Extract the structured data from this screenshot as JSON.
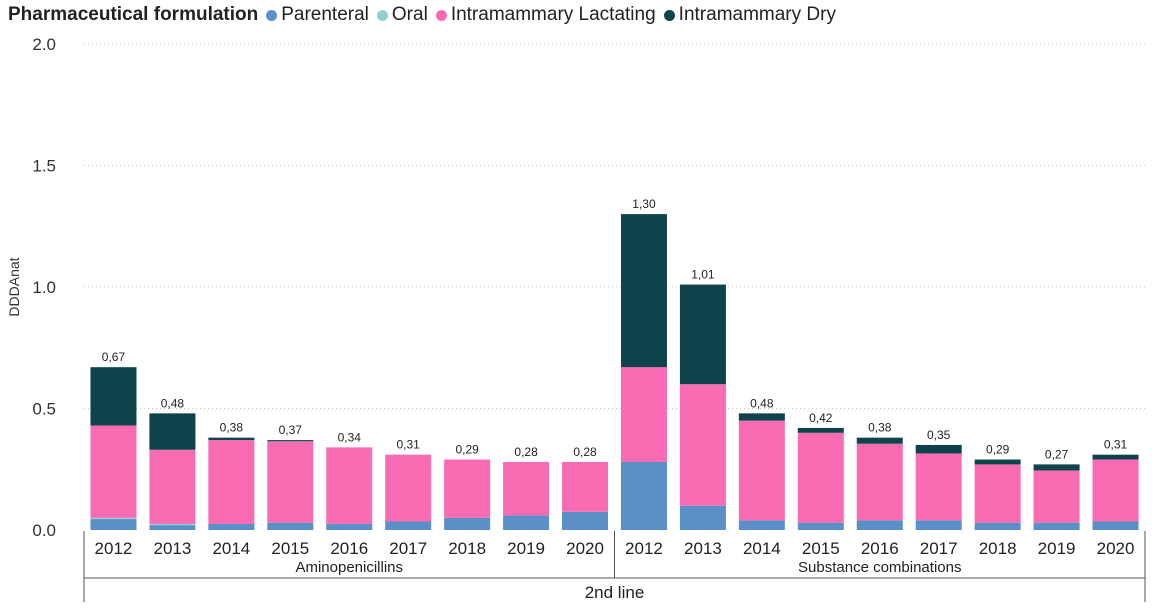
{
  "chart_data": {
    "type": "bar",
    "stacked": true,
    "legend_title": "Pharmaceutical formulation",
    "ylabel": "DDDAnat",
    "ylim": [
      0,
      2.0
    ],
    "yticks": [
      "0.0",
      "0.5",
      "1.0",
      "1.5",
      "2.0"
    ],
    "ytick_values": [
      0,
      0.5,
      1.0,
      1.5,
      2.0
    ],
    "grid": "horizontal dotted",
    "categories": [
      "2012",
      "2013",
      "2014",
      "2015",
      "2016",
      "2017",
      "2018",
      "2019",
      "2020",
      "2012",
      "2013",
      "2014",
      "2015",
      "2016",
      "2017",
      "2018",
      "2019",
      "2020"
    ],
    "groups": [
      {
        "label": "Aminopenicillins",
        "count": 9
      },
      {
        "label": "Substance combinations",
        "count": 9
      }
    ],
    "supergroup": "2nd line",
    "series": [
      {
        "name": "Parenteral",
        "color": "#5b8fc7",
        "values": [
          0.045,
          0.02,
          0.025,
          0.03,
          0.025,
          0.035,
          0.05,
          0.06,
          0.075,
          0.28,
          0.1,
          0.04,
          0.03,
          0.04,
          0.04,
          0.03,
          0.03,
          0.035
        ]
      },
      {
        "name": "Oral",
        "color": "#92cfd0",
        "values": [
          0.005,
          0.005,
          0.0,
          0.0,
          0.0,
          0.0,
          0.0,
          0.0,
          0.0,
          0.0,
          0.0,
          0.0,
          0.0,
          0.0,
          0.0,
          0.0,
          0.0,
          0.0
        ]
      },
      {
        "name": "Intramammary Lactating",
        "color": "#f96cb4",
        "values": [
          0.38,
          0.305,
          0.345,
          0.335,
          0.315,
          0.275,
          0.24,
          0.22,
          0.205,
          0.39,
          0.5,
          0.41,
          0.37,
          0.315,
          0.275,
          0.24,
          0.215,
          0.255
        ]
      },
      {
        "name": "Intramammary Dry",
        "color": "#0f434b",
        "values": [
          0.24,
          0.15,
          0.01,
          0.005,
          0.0,
          0.0,
          0.0,
          0.0,
          0.0,
          0.63,
          0.41,
          0.03,
          0.02,
          0.025,
          0.035,
          0.02,
          0.025,
          0.02
        ]
      }
    ],
    "totals": [
      "0,67",
      "0,48",
      "0,38",
      "0,37",
      "0,34",
      "0,31",
      "0,29",
      "0,28",
      "0,28",
      "1,30",
      "1,01",
      "0,48",
      "0,42",
      "0,38",
      "0,35",
      "0,29",
      "0,27",
      "0,31"
    ]
  }
}
